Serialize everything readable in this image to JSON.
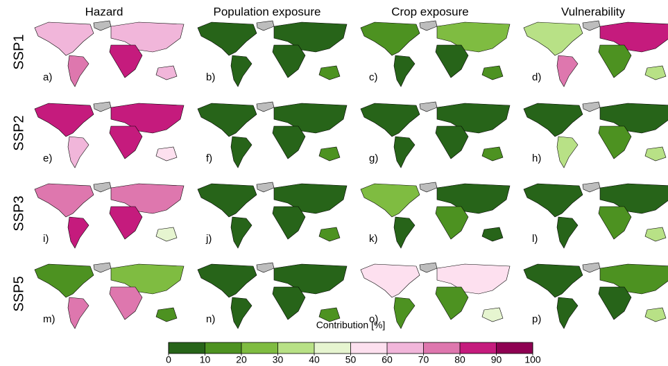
{
  "columns": [
    "Hazard",
    "Population exposure",
    "Crop exposure",
    "Vulnerability"
  ],
  "rows": [
    {
      "label": "SSP1",
      "panels": [
        {
          "letter": "a)",
          "fills": [
            "#f1b6da",
            "#de77ae",
            "#f1b6da",
            "#c51b7d",
            "#f1b6da"
          ]
        },
        {
          "letter": "b)",
          "fills": [
            "#276419",
            "#276419",
            "#276419",
            "#276419",
            "#4d9221"
          ]
        },
        {
          "letter": "c)",
          "fills": [
            "#4d9221",
            "#276419",
            "#7fbc41",
            "#276419",
            "#4d9221"
          ]
        },
        {
          "letter": "d)",
          "fills": [
            "#b8e186",
            "#de77ae",
            "#c51b7d",
            "#4d9221",
            "#b8e186"
          ]
        }
      ]
    },
    {
      "label": "SSP2",
      "panels": [
        {
          "letter": "e)",
          "fills": [
            "#c51b7d",
            "#f1b6da",
            "#c51b7d",
            "#c51b7d",
            "#fde0ef"
          ]
        },
        {
          "letter": "f)",
          "fills": [
            "#276419",
            "#276419",
            "#276419",
            "#276419",
            "#4d9221"
          ]
        },
        {
          "letter": "g)",
          "fills": [
            "#276419",
            "#276419",
            "#276419",
            "#276419",
            "#4d9221"
          ]
        },
        {
          "letter": "h)",
          "fills": [
            "#276419",
            "#b8e186",
            "#276419",
            "#4d9221",
            "#b8e186"
          ]
        }
      ]
    },
    {
      "label": "SSP3",
      "panels": [
        {
          "letter": "i)",
          "fills": [
            "#de77ae",
            "#c51b7d",
            "#de77ae",
            "#c51b7d",
            "#e6f5d0"
          ]
        },
        {
          "letter": "j)",
          "fills": [
            "#276419",
            "#276419",
            "#276419",
            "#276419",
            "#4d9221"
          ]
        },
        {
          "letter": "k)",
          "fills": [
            "#7fbc41",
            "#276419",
            "#276419",
            "#4d9221",
            "#276419"
          ]
        },
        {
          "letter": "l)",
          "fills": [
            "#276419",
            "#276419",
            "#276419",
            "#4d9221",
            "#b8e186"
          ]
        }
      ]
    },
    {
      "label": "SSP5",
      "panels": [
        {
          "letter": "m)",
          "fills": [
            "#4d9221",
            "#de77ae",
            "#7fbc41",
            "#de77ae",
            "#4d9221"
          ]
        },
        {
          "letter": "n)",
          "fills": [
            "#276419",
            "#276419",
            "#276419",
            "#276419",
            "#4d9221"
          ]
        },
        {
          "letter": "o)",
          "fills": [
            "#fde0ef",
            "#4d9221",
            "#fde0ef",
            "#4d9221",
            "#e6f5d0"
          ]
        },
        {
          "letter": "p)",
          "fills": [
            "#276419",
            "#276419",
            "#4d9221",
            "#276419",
            "#b8e186"
          ]
        }
      ]
    }
  ],
  "colorbar": {
    "title": "Contribution [%]",
    "lim": [
      0,
      100
    ],
    "ticks": [
      0,
      10,
      20,
      30,
      40,
      50,
      60,
      70,
      80,
      90,
      100
    ],
    "colors": [
      "#276419",
      "#4d9221",
      "#7fbc41",
      "#b8e186",
      "#e6f5d0",
      "#fde0ef",
      "#f1b6da",
      "#de77ae",
      "#c51b7d",
      "#8e0152"
    ]
  }
}
